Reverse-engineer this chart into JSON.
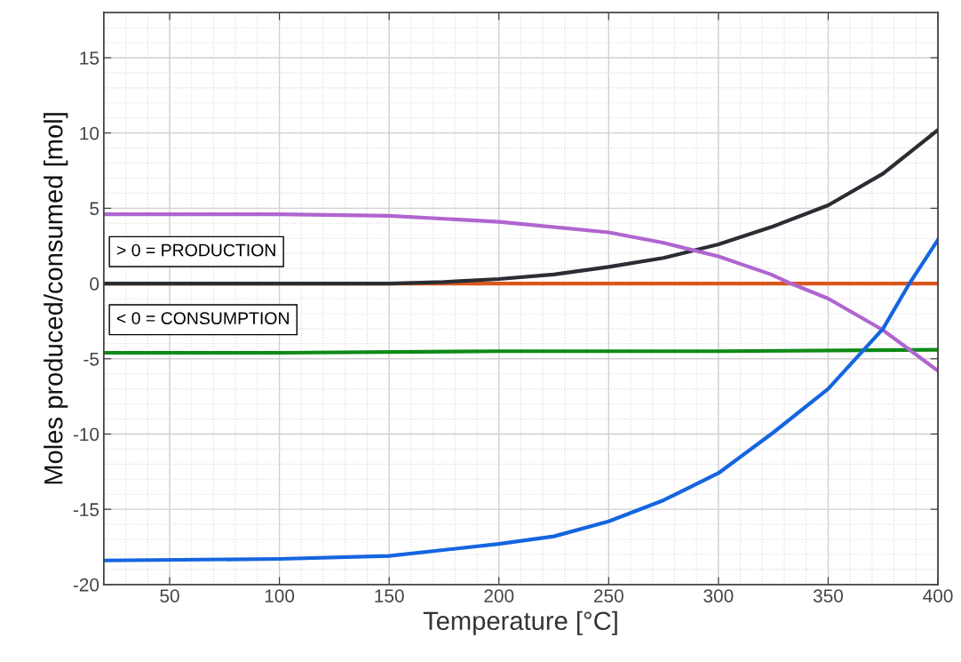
{
  "chart_data": {
    "type": "line",
    "xlabel": "Temperature [°C]",
    "ylabel": "Moles produced/consumed [mol]",
    "xlim": [
      20,
      400
    ],
    "ylim": [
      -20,
      18
    ],
    "xticks": [
      50,
      100,
      150,
      200,
      250,
      300,
      350,
      400
    ],
    "yticks": [
      -20,
      -15,
      -10,
      -5,
      0,
      5,
      10,
      15
    ],
    "grid": true,
    "legend": false,
    "marker": "none",
    "line_style": "solid",
    "annotations": [
      "> 0 = PRODUCTION",
      "< 0 = CONSUMPTION"
    ],
    "series": [
      {
        "color": "#d9581e",
        "x": [
          20,
          400
        ],
        "values": [
          0,
          0
        ]
      },
      {
        "color": "#0e8a16",
        "x": [
          20,
          100,
          200,
          300,
          400
        ],
        "values": [
          -4.6,
          -4.6,
          -4.5,
          -4.5,
          -4.4
        ]
      },
      {
        "color": "#2b2d33",
        "x": [
          20,
          100,
          150,
          175,
          200,
          225,
          250,
          275,
          300,
          325,
          350,
          375,
          400
        ],
        "values": [
          0,
          0,
          0,
          0.1,
          0.3,
          0.6,
          1.1,
          1.7,
          2.6,
          3.8,
          5.2,
          7.3,
          10.2
        ]
      },
      {
        "color": "#b065d0",
        "x": [
          20,
          100,
          150,
          200,
          250,
          275,
          300,
          324,
          333,
          350,
          375,
          400
        ],
        "values": [
          4.6,
          4.6,
          4.5,
          4.1,
          3.4,
          2.7,
          1.8,
          0.6,
          0,
          -1.0,
          -3.1,
          -5.8
        ]
      },
      {
        "color": "#1565e0",
        "x": [
          20,
          100,
          150,
          200,
          225,
          250,
          275,
          300,
          325,
          350,
          375,
          387,
          400
        ],
        "values": [
          -18.4,
          -18.3,
          -18.1,
          -17.3,
          -16.8,
          -15.8,
          -14.4,
          -12.6,
          -9.9,
          -7.0,
          -3.0,
          0,
          2.9
        ]
      }
    ]
  }
}
